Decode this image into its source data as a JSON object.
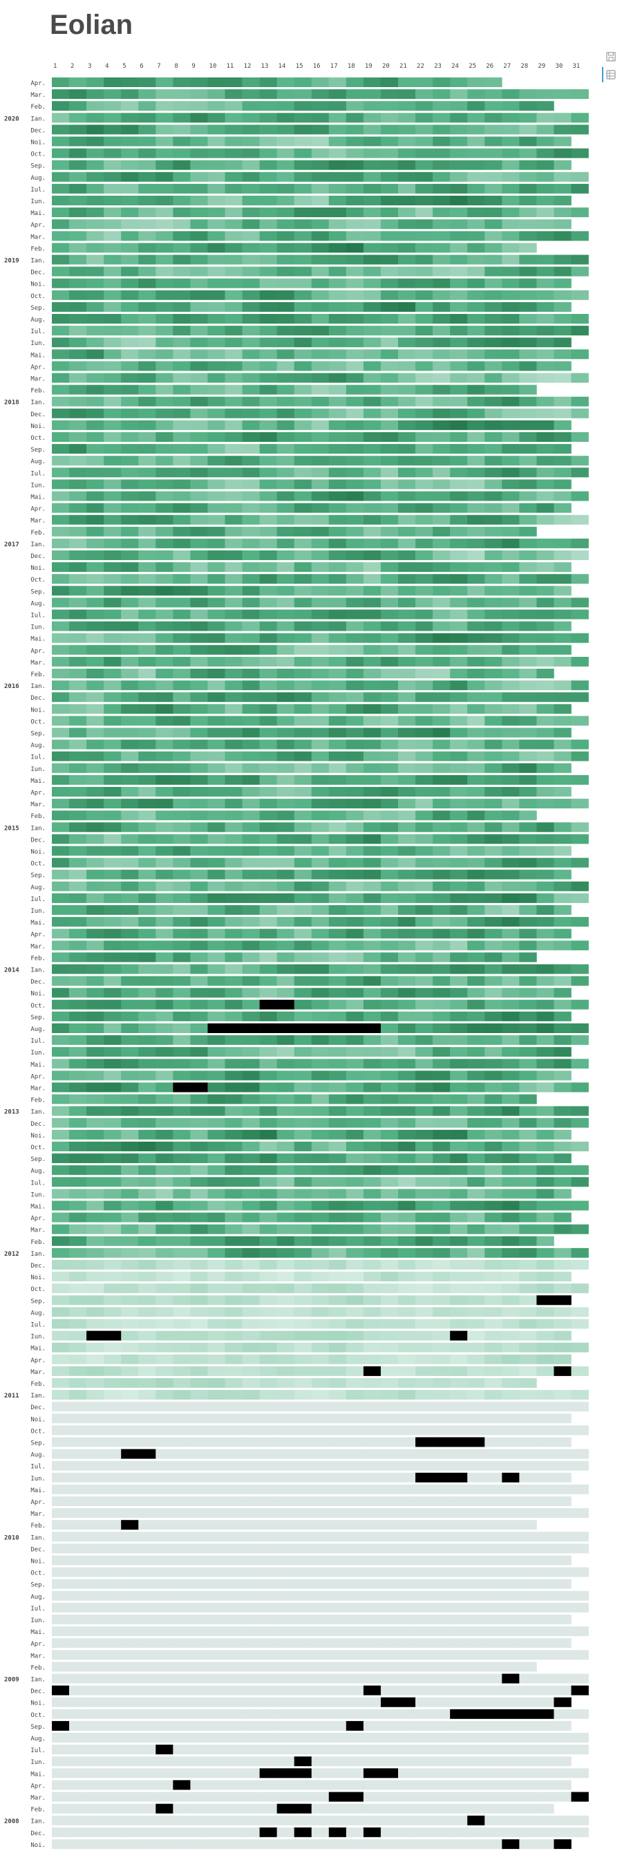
{
  "title": "Eolian",
  "colors": {
    "empty": "#dde7e6",
    "low": "#e6f4ee",
    "mid": "#52b083",
    "high": "#0b5a2d",
    "missing": "#000000",
    "accent": "#3b9dd2"
  },
  "toolbar": {
    "icons": [
      "save-icon",
      "table-icon"
    ]
  },
  "chart_data": {
    "type": "heatmap",
    "title": "Eolian",
    "x": {
      "label": "",
      "ticks": [
        1,
        2,
        3,
        4,
        5,
        6,
        7,
        8,
        9,
        10,
        11,
        12,
        13,
        14,
        15,
        16,
        17,
        18,
        19,
        20,
        21,
        22,
        23,
        24,
        25,
        26,
        27,
        28,
        29,
        30,
        31
      ]
    },
    "y": {
      "order": "newest-first",
      "month_names": [
        "Ian.",
        "Feb.",
        "Mar.",
        "Apr.",
        "Mai.",
        "Iun.",
        "Iul.",
        "Aug.",
        "Sep.",
        "Oct.",
        "Noi.",
        "Dec."
      ],
      "start": {
        "year": 2020,
        "month": 4
      },
      "end": {
        "year": 2007,
        "month": 11
      },
      "year_labels": [
        "2020",
        "2019",
        "2018",
        "2017",
        "2016",
        "2015",
        "2014",
        "2013",
        "2012",
        "2011",
        "2010",
        "2009",
        "2008"
      ],
      "first_day_of_series": {
        "year": 2007,
        "month": 11,
        "day": 10
      },
      "last_day_of_series": {
        "year": 2020,
        "month": 4,
        "day": 26
      }
    },
    "value_scale": {
      "min": 0,
      "max": 1,
      "description": "relative daily value: 0 = lightest, 1 = darkest green"
    },
    "monthly_intensity": [
      {
        "from": "2020-04",
        "to": "2012-01",
        "mean": 0.5,
        "spread": 0.4
      },
      {
        "from": "2011-12",
        "to": "2011-01",
        "mean": 0.14,
        "spread": 0.12
      },
      {
        "from": "2010-12",
        "to": "2007-11",
        "mean": 0.02,
        "spread": 0.03
      }
    ],
    "missing_days": [
      {
        "ym": "2013-10",
        "days": [
          13,
          14
        ]
      },
      {
        "ym": "2013-08",
        "days": [
          10,
          11,
          12,
          13,
          14,
          15,
          16,
          17,
          18,
          19
        ]
      },
      {
        "ym": "2013-03",
        "days": [
          8,
          9
        ]
      },
      {
        "ym": "2011-09",
        "days": [
          29,
          30
        ]
      },
      {
        "ym": "2011-06",
        "days": [
          3,
          4,
          24
        ]
      },
      {
        "ym": "2011-03",
        "days": [
          19,
          30
        ]
      },
      {
        "ym": "2010-09",
        "days": [
          22,
          23,
          24,
          25
        ]
      },
      {
        "ym": "2010-08",
        "days": [
          5,
          6
        ]
      },
      {
        "ym": "2010-06",
        "days": [
          22,
          23,
          24,
          27
        ]
      },
      {
        "ym": "2010-02",
        "days": [
          5
        ]
      },
      {
        "ym": "2009-01",
        "days": [
          27
        ]
      },
      {
        "ym": "2008-12",
        "days": [
          1,
          19,
          31
        ]
      },
      {
        "ym": "2008-11",
        "days": [
          20,
          21,
          30
        ]
      },
      {
        "ym": "2008-10",
        "days": [
          24,
          25,
          26,
          27,
          28,
          29
        ]
      },
      {
        "ym": "2008-09",
        "days": [
          1,
          18
        ]
      },
      {
        "ym": "2008-07",
        "days": [
          7
        ]
      },
      {
        "ym": "2008-06",
        "days": [
          15
        ]
      },
      {
        "ym": "2008-05",
        "days": [
          13,
          14,
          15,
          19,
          20
        ]
      },
      {
        "ym": "2008-04",
        "days": [
          8
        ]
      },
      {
        "ym": "2008-03",
        "days": [
          17,
          18,
          31
        ]
      },
      {
        "ym": "2008-02",
        "days": [
          7,
          14,
          15
        ]
      },
      {
        "ym": "2008-01",
        "days": [
          25
        ]
      },
      {
        "ym": "2007-12",
        "days": [
          13,
          15,
          17,
          19
        ]
      },
      {
        "ym": "2007-11",
        "days": [
          27,
          30
        ]
      }
    ]
  }
}
